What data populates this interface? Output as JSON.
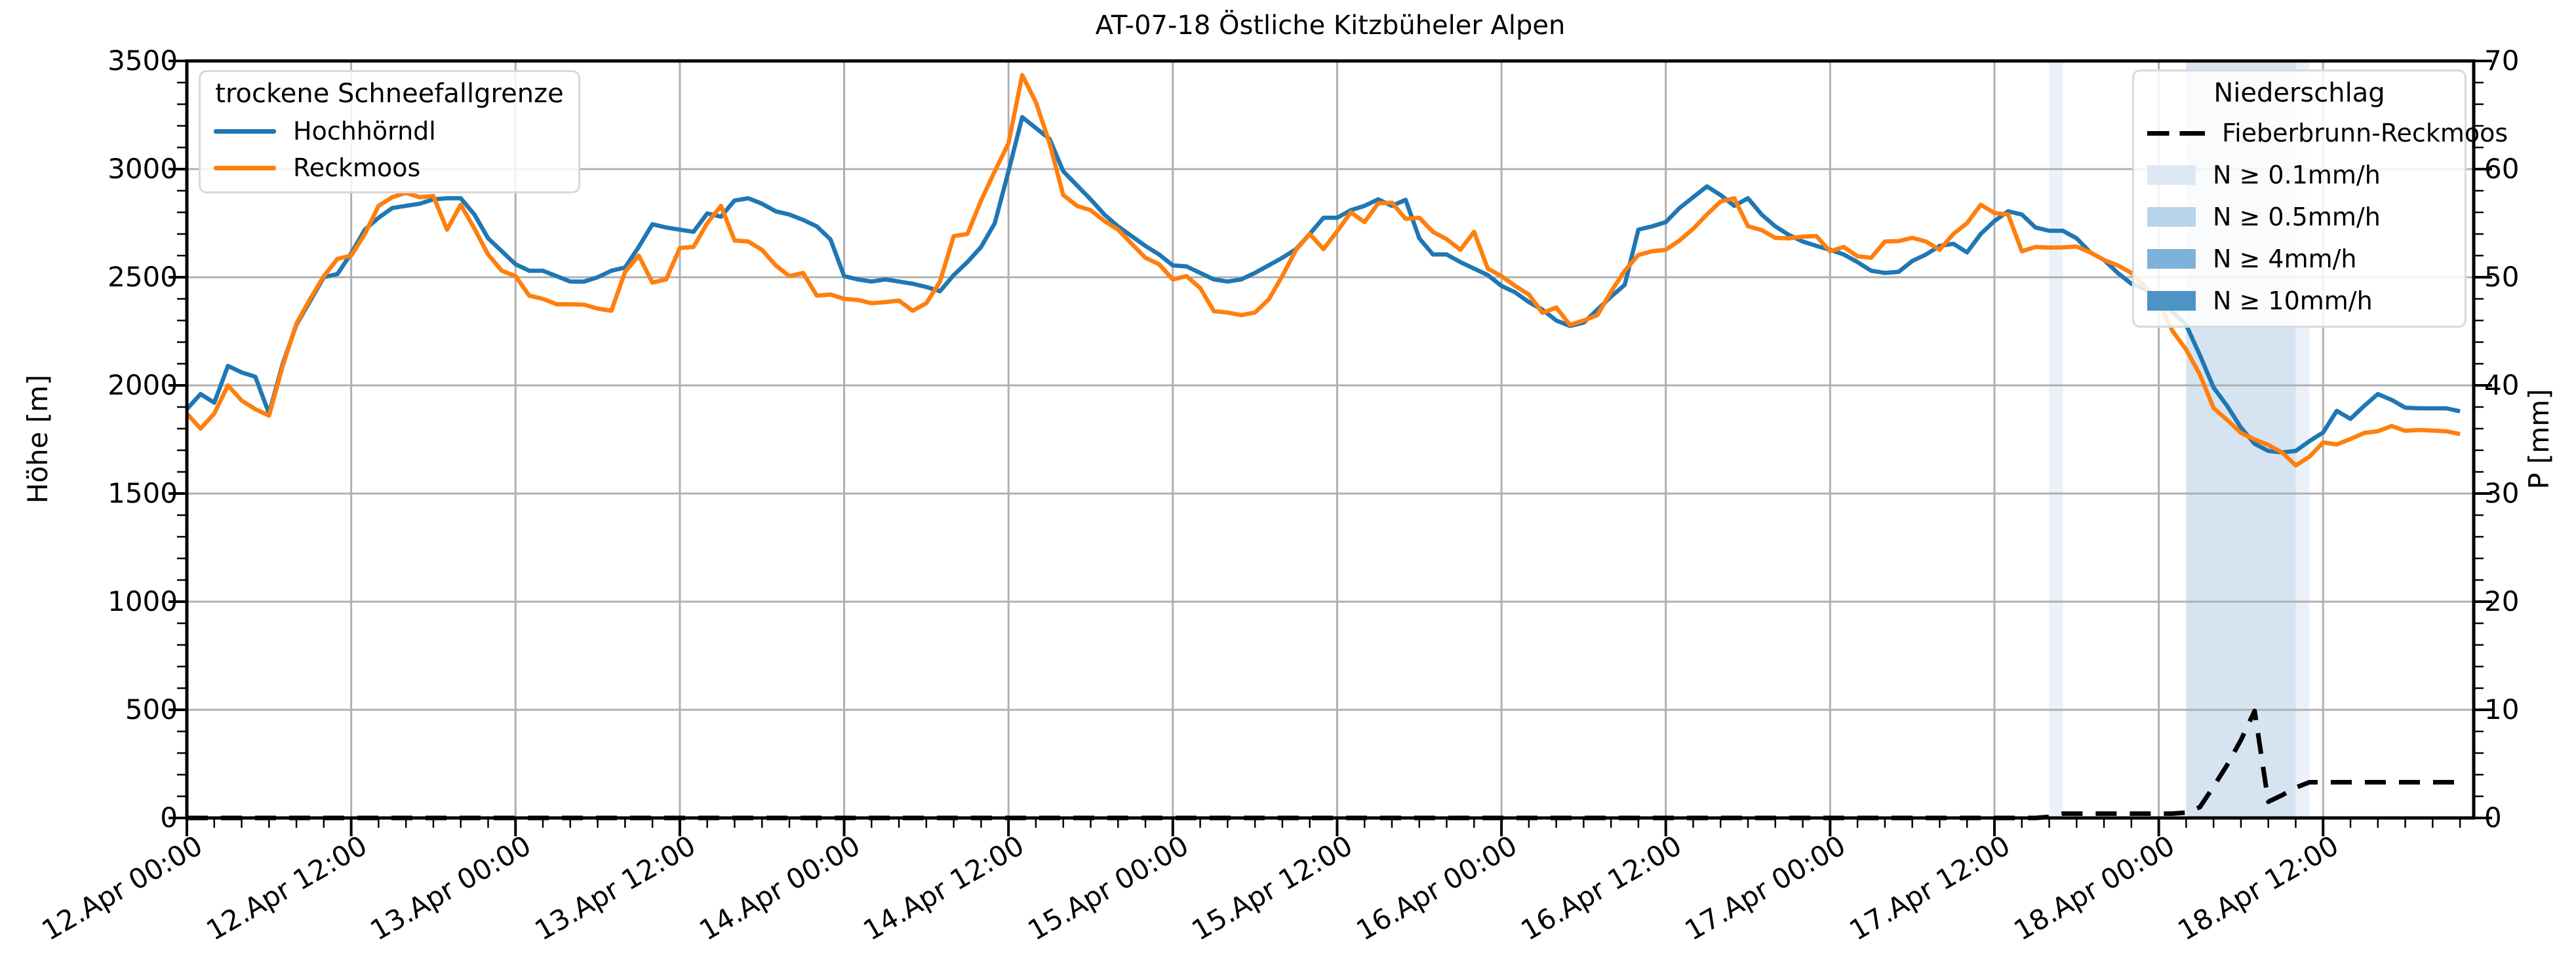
{
  "title": "AT-07-18 Östliche Kitzbüheler Alpen",
  "axes": {
    "left_label": "Höhe [m]",
    "right_label": "P [mm]",
    "x_tick_labels": [
      "12.Apr 00:00",
      "12.Apr 12:00",
      "13.Apr 00:00",
      "13.Apr 12:00",
      "14.Apr 00:00",
      "14.Apr 12:00",
      "15.Apr 00:00",
      "15.Apr 12:00",
      "16.Apr 00:00",
      "16.Apr 12:00",
      "17.Apr 00:00",
      "17.Apr 12:00",
      "18.Apr 00:00",
      "18.Apr 12:00"
    ],
    "x_tick_hours": [
      0,
      12,
      24,
      36,
      48,
      60,
      72,
      84,
      96,
      108,
      120,
      132,
      144,
      156
    ],
    "x_minor_step_hours": 2,
    "x_max_hours": 167,
    "left_ticks": [
      0,
      500,
      1000,
      1500,
      2000,
      2500,
      3000,
      3500
    ],
    "left_minor_step": 100,
    "left_max": 3500,
    "right_ticks": [
      0,
      10,
      20,
      30,
      40,
      50,
      60,
      70
    ],
    "right_minor_step": 2,
    "right_max": 70,
    "grid_color": "#b0b0b0"
  },
  "legend_snowline": {
    "title": "trockene Schneefallgrenze",
    "items": [
      {
        "label": "Hochhörndl",
        "color": "#1f77b4"
      },
      {
        "label": "Reckmoos",
        "color": "#ff7f0e"
      }
    ]
  },
  "legend_precip": {
    "title": "Niederschlag",
    "line_item": {
      "label": "Fieberbrunn-Reckmoos",
      "color": "#000000",
      "style": "dashed"
    },
    "levels": [
      {
        "label": "N ≥ 0.1mm/h",
        "color": "#dde9f4"
      },
      {
        "label": "N ≥ 0.5mm/h",
        "color": "#b8d4ea"
      },
      {
        "label": "N ≥ 4mm/h",
        "color": "#7fb2d8"
      },
      {
        "label": "N ≥ 10mm/h",
        "color": "#4e93c6"
      }
    ]
  },
  "chart_data": {
    "type": "line",
    "title": "AT-07-18 Östliche Kitzbüheler Alpen",
    "x_description": "hours after 12.Apr 00:00, hourly values",
    "x_start_label": "12.Apr 00:00",
    "x_end_hour": 167,
    "ylabel_left": "Höhe [m]",
    "ylabel_right": "P [mm]",
    "ylim_left": [
      0,
      3500
    ],
    "ylim_right": [
      0,
      70
    ],
    "grid": true,
    "series": [
      {
        "name": "Hochhörndl",
        "axis": "left",
        "color": "#1f77b4",
        "style": "solid",
        "values": [
          1890,
          1960,
          1920,
          2090,
          2060,
          2040,
          1870,
          2100,
          2280,
          2390,
          2500,
          2515,
          2610,
          2720,
          2775,
          2820,
          2830,
          2840,
          2860,
          2865,
          2865,
          2790,
          2680,
          2620,
          2560,
          2530,
          2530,
          2505,
          2480,
          2480,
          2500,
          2530,
          2545,
          2640,
          2745,
          2730,
          2720,
          2710,
          2795,
          2780,
          2855,
          2865,
          2840,
          2805,
          2790,
          2765,
          2735,
          2675,
          2505,
          2490,
          2480,
          2490,
          2480,
          2470,
          2455,
          2435,
          2510,
          2570,
          2640,
          2750,
          2990,
          3240,
          3190,
          3140,
          2990,
          2925,
          2860,
          2790,
          2735,
          2690,
          2645,
          2605,
          2555,
          2550,
          2520,
          2490,
          2480,
          2490,
          2520,
          2555,
          2590,
          2630,
          2700,
          2775,
          2775,
          2810,
          2830,
          2860,
          2830,
          2858,
          2680,
          2605,
          2605,
          2570,
          2540,
          2510,
          2460,
          2430,
          2385,
          2350,
          2300,
          2275,
          2290,
          2350,
          2410,
          2465,
          2720,
          2735,
          2755,
          2820,
          2870,
          2920,
          2880,
          2830,
          2865,
          2790,
          2735,
          2695,
          2665,
          2645,
          2627,
          2605,
          2570,
          2530,
          2520,
          2525,
          2575,
          2605,
          2645,
          2655,
          2615,
          2700,
          2760,
          2805,
          2790,
          2730,
          2715,
          2715,
          2680,
          2615,
          2580,
          2520,
          2470,
          2445,
          2400,
          2340,
          2280,
          2140,
          1990,
          1905,
          1805,
          1730,
          1697,
          1690,
          1697,
          1742,
          1782,
          1882,
          1845,
          1905,
          1960,
          1933,
          1897,
          1894,
          1894,
          1894,
          1880
        ]
      },
      {
        "name": "Reckmoos",
        "axis": "left",
        "color": "#ff7f0e",
        "style": "solid",
        "values": [
          1870,
          1800,
          1870,
          2000,
          1930,
          1890,
          1860,
          2090,
          2285,
          2400,
          2505,
          2585,
          2600,
          2700,
          2830,
          2870,
          2890,
          2870,
          2875,
          2720,
          2835,
          2725,
          2605,
          2530,
          2505,
          2415,
          2400,
          2375,
          2375,
          2373,
          2355,
          2345,
          2525,
          2600,
          2475,
          2490,
          2635,
          2640,
          2750,
          2830,
          2670,
          2665,
          2627,
          2555,
          2505,
          2520,
          2415,
          2420,
          2400,
          2395,
          2380,
          2385,
          2392,
          2345,
          2380,
          2480,
          2690,
          2700,
          2855,
          2990,
          3120,
          3435,
          3310,
          3120,
          2880,
          2830,
          2810,
          2760,
          2720,
          2655,
          2590,
          2560,
          2490,
          2505,
          2450,
          2343,
          2337,
          2325,
          2337,
          2397,
          2506,
          2627,
          2700,
          2630,
          2712,
          2800,
          2755,
          2842,
          2845,
          2770,
          2775,
          2710,
          2676,
          2627,
          2710,
          2540,
          2505,
          2460,
          2420,
          2335,
          2360,
          2280,
          2300,
          2325,
          2433,
          2530,
          2603,
          2620,
          2627,
          2670,
          2724,
          2790,
          2850,
          2865,
          2736,
          2718,
          2682,
          2680,
          2688,
          2690,
          2620,
          2640,
          2597,
          2590,
          2665,
          2667,
          2682,
          2665,
          2627,
          2700,
          2750,
          2835,
          2797,
          2790,
          2620,
          2640,
          2637,
          2638,
          2642,
          2615,
          2580,
          2555,
          2520,
          2458,
          2385,
          2252,
          2165,
          2050,
          1895,
          1840,
          1780,
          1750,
          1725,
          1690,
          1630,
          1670,
          1736,
          1727,
          1752,
          1780,
          1788,
          1812,
          1790,
          1794,
          1791,
          1788,
          1775
        ]
      },
      {
        "name": "Fieberbrunn-Reckmoos",
        "axis": "right",
        "color": "#000000",
        "style": "dashed",
        "values": [
          0,
          0,
          0,
          0,
          0,
          0,
          0,
          0,
          0,
          0,
          0,
          0,
          0,
          0,
          0,
          0,
          0,
          0,
          0,
          0,
          0,
          0,
          0,
          0,
          0,
          0,
          0,
          0,
          0,
          0,
          0,
          0,
          0,
          0,
          0,
          0,
          0,
          0,
          0,
          0,
          0,
          0,
          0,
          0,
          0,
          0,
          0,
          0,
          0,
          0,
          0,
          0,
          0,
          0,
          0,
          0,
          0,
          0,
          0,
          0,
          0,
          0,
          0,
          0,
          0,
          0,
          0,
          0,
          0,
          0,
          0,
          0,
          0,
          0,
          0,
          0,
          0,
          0,
          0,
          0,
          0,
          0,
          0,
          0,
          0,
          0,
          0,
          0,
          0,
          0,
          0,
          0,
          0,
          0,
          0,
          0,
          0,
          0,
          0,
          0,
          0,
          0,
          0,
          0,
          0,
          0,
          0,
          0,
          0,
          0,
          0,
          0,
          0,
          0,
          0,
          0,
          0,
          0,
          0,
          0,
          0,
          0,
          0,
          0,
          0,
          0,
          0,
          0,
          0,
          0,
          0,
          0,
          0,
          0,
          0,
          0,
          0.1,
          0.4,
          0.4,
          0.4,
          0.4,
          0.4,
          0.4,
          0.4,
          0.4,
          0.4,
          0.5,
          1.0,
          2.9,
          4.9,
          7.2,
          9.9,
          1.5,
          2.1,
          2.8,
          3.3,
          3.3,
          3.3,
          3.3,
          3.3,
          3.3,
          3.3,
          3.3,
          3.3,
          3.3,
          3.3,
          3.3
        ]
      }
    ],
    "precip_bands": [
      {
        "from_hour": 136,
        "to_hour": 137,
        "level": "N ≥ 0.1mm/h",
        "fill": "#eaf1f9"
      },
      {
        "from_hour": 146,
        "to_hour": 154,
        "level": "N ≥ 0.5mm/h",
        "fill": "#d6e4f2"
      },
      {
        "from_hour": 154,
        "to_hour": 155,
        "level": "N ≥ 0.1mm/h",
        "fill": "#eaf1f9"
      }
    ],
    "legend_left_position": "upper left",
    "legend_right_position": "upper right"
  }
}
